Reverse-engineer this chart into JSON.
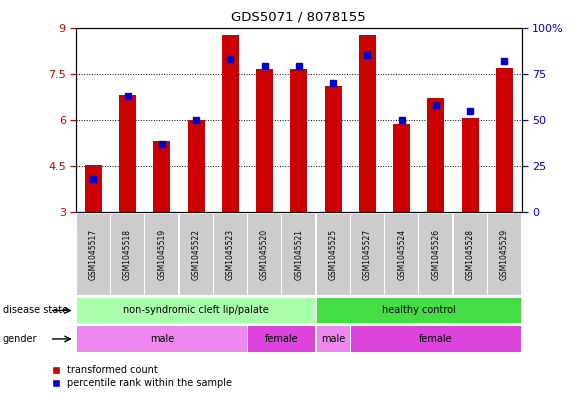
{
  "title": "GDS5071 / 8078155",
  "samples": [
    "GSM1045517",
    "GSM1045518",
    "GSM1045519",
    "GSM1045522",
    "GSM1045523",
    "GSM1045520",
    "GSM1045521",
    "GSM1045525",
    "GSM1045527",
    "GSM1045524",
    "GSM1045526",
    "GSM1045528",
    "GSM1045529"
  ],
  "bar_values": [
    4.55,
    6.8,
    5.3,
    6.0,
    8.75,
    7.65,
    7.65,
    7.1,
    8.75,
    5.85,
    6.7,
    6.05,
    7.7
  ],
  "percentile_values": [
    18,
    63,
    37,
    50,
    83,
    79,
    79,
    70,
    85,
    50,
    58,
    55,
    82
  ],
  "bar_color": "#cc0000",
  "percentile_color": "#0000cc",
  "ymin": 3,
  "ymax": 9,
  "yticks": [
    3,
    4.5,
    6,
    7.5,
    9
  ],
  "ytick_labels": [
    "3",
    "4.5",
    "6",
    "7.5",
    "9"
  ],
  "right_yticks": [
    0,
    25,
    50,
    75,
    100
  ],
  "right_ytick_labels": [
    "0",
    "25",
    "50",
    "75",
    "100%"
  ],
  "disease_state_groups": [
    {
      "label": "non-syndromic cleft lip/palate",
      "start": 0,
      "end": 7,
      "color": "#aaffaa"
    },
    {
      "label": "healthy control",
      "start": 7,
      "end": 13,
      "color": "#44dd44"
    }
  ],
  "gender_groups": [
    {
      "label": "male",
      "start": 0,
      "end": 5,
      "color": "#ee88ee"
    },
    {
      "label": "female",
      "start": 5,
      "end": 7,
      "color": "#dd44dd"
    },
    {
      "label": "male",
      "start": 7,
      "end": 8,
      "color": "#ee88ee"
    },
    {
      "label": "female",
      "start": 8,
      "end": 13,
      "color": "#dd44dd"
    }
  ],
  "bar_width": 0.5,
  "bg_color": "#ffffff",
  "tick_label_color_left": "#cc0000",
  "tick_label_color_right": "#0000cc",
  "sample_bg_color": "#cccccc",
  "left_label_color": "#000000"
}
